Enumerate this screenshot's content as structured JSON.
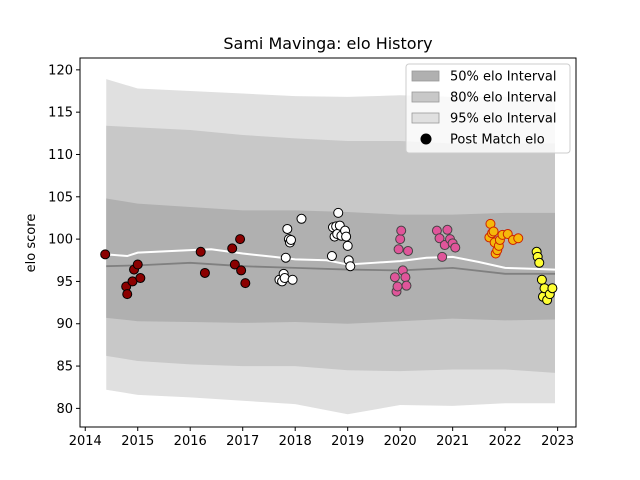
{
  "chart_data": {
    "type": "scatter",
    "title": "Sami Mavinga: elo History",
    "xlabel": "",
    "ylabel": "elo score",
    "xlim": [
      2013.9,
      2023.35
    ],
    "ylim": [
      77.8,
      121.4
    ],
    "x_ticks": [
      "2014",
      "2015",
      "2016",
      "2017",
      "2018",
      "2019",
      "2020",
      "2021",
      "2022",
      "2023"
    ],
    "y_ticks": [
      "80",
      "85",
      "90",
      "95",
      "100",
      "105",
      "110",
      "115",
      "120"
    ],
    "grid": false,
    "legend_position": "top-right",
    "legend": [
      {
        "label": "50% elo Interval",
        "color": "#b0b0b0"
      },
      {
        "label": "80% elo Interval",
        "color": "#c8c8c8"
      },
      {
        "label": "95% elo Interval",
        "color": "#e0e0e0"
      },
      {
        "label": "Post Match elo",
        "color": "#000000"
      }
    ],
    "bands": {
      "x": [
        2014.4,
        2015.0,
        2016.0,
        2017.0,
        2018.0,
        2019.0,
        2020.0,
        2021.0,
        2022.0,
        2022.95
      ],
      "p95_low": [
        82.2,
        81.6,
        81.3,
        80.9,
        80.5,
        79.3,
        80.4,
        80.3,
        80.6,
        80.6
      ],
      "p95_high": [
        118.9,
        117.8,
        117.5,
        117.2,
        116.9,
        116.8,
        117.0,
        116.8,
        116.8,
        116.8
      ],
      "p80_low": [
        86.2,
        85.6,
        85.2,
        85.0,
        85.0,
        84.5,
        84.4,
        84.6,
        84.6,
        84.2
      ],
      "p80_high": [
        113.4,
        113.2,
        112.9,
        112.3,
        111.9,
        111.6,
        111.6,
        111.3,
        111.3,
        111.3
      ],
      "p50_low": [
        90.7,
        90.3,
        90.2,
        90.1,
        90.2,
        90.0,
        90.3,
        90.6,
        90.4,
        90.5
      ],
      "p50_high": [
        104.8,
        104.2,
        103.8,
        103.4,
        103.4,
        103.2,
        102.9,
        102.9,
        103.1,
        103.1
      ]
    },
    "median_line": {
      "x": [
        2014.4,
        2015.0,
        2016.0,
        2017.0,
        2018.0,
        2019.0,
        2020.0,
        2021.0,
        2022.0,
        2022.95
      ],
      "y": [
        96.8,
        96.9,
        97.2,
        96.8,
        96.6,
        96.4,
        96.3,
        96.6,
        95.9,
        95.9
      ],
      "color": "#808080"
    },
    "elo_line": {
      "x": [
        2014.4,
        2014.8,
        2015.0,
        2016.0,
        2016.4,
        2017.0,
        2017.6,
        2018.0,
        2018.6,
        2019.0,
        2019.5,
        2020.0,
        2020.5,
        2021.0,
        2021.5,
        2022.0,
        2022.5,
        2022.95
      ],
      "y": [
        98.2,
        98.0,
        98.4,
        98.7,
        98.8,
        98.3,
        97.9,
        97.6,
        97.5,
        97.0,
        97.2,
        97.4,
        97.8,
        97.9,
        97.3,
        96.6,
        96.5,
        96.4
      ],
      "color": "#ffffff"
    },
    "series": [
      {
        "fill": "#8b0000",
        "edge": "#000000",
        "x": [
          2014.38,
          2014.78,
          2014.8,
          2014.9,
          2014.93,
          2015.0,
          2015.05
        ],
        "y": [
          98.2,
          94.4,
          93.5,
          95.0,
          96.4,
          97.0,
          95.4
        ]
      },
      {
        "fill": "#8b0000",
        "edge": "#000000",
        "x": [
          2016.2,
          2016.28,
          2016.8,
          2016.85,
          2016.95,
          2016.97,
          2017.05
        ],
        "y": [
          98.5,
          96.0,
          98.9,
          97.0,
          100.0,
          96.3,
          94.8
        ]
      },
      {
        "fill": "#ffffff",
        "edge": "#000000",
        "x": [
          2017.7,
          2017.75,
          2017.78,
          2017.8,
          2017.82,
          2017.85,
          2017.88,
          2017.9,
          2017.92,
          2017.95,
          2018.12,
          2018.7,
          2018.72,
          2018.75,
          2018.78,
          2018.8,
          2018.82,
          2018.85,
          2018.88,
          2018.95,
          2018.97,
          2019.0,
          2019.02,
          2019.05
        ],
        "y": [
          95.2,
          95.0,
          95.9,
          95.4,
          97.8,
          101.2,
          100.0,
          99.6,
          99.9,
          95.2,
          102.4,
          98.0,
          101.4,
          100.3,
          101.5,
          100.6,
          103.1,
          101.6,
          100.4,
          101.0,
          100.3,
          99.2,
          97.5,
          96.8
        ]
      },
      {
        "fill": "#e0559a",
        "edge": "#444444",
        "x": [
          2019.9,
          2019.93,
          2019.95,
          2019.97,
          2020.0,
          2020.02,
          2020.05,
          2020.1,
          2020.12,
          2020.15,
          2020.7,
          2020.75,
          2020.8,
          2020.85,
          2020.9,
          2020.95,
          2021.0,
          2021.05
        ],
        "y": [
          95.5,
          93.8,
          94.4,
          98.8,
          100.0,
          101.0,
          96.3,
          95.5,
          94.5,
          98.6,
          101.0,
          100.1,
          97.9,
          99.3,
          101.1,
          100.0,
          99.5,
          99.0
        ]
      },
      {
        "fill": "#f5b80b",
        "edge": "#cc2200",
        "x": [
          2021.7,
          2021.72,
          2021.75,
          2021.78,
          2021.8,
          2021.82,
          2021.85,
          2021.88,
          2021.9,
          2021.95,
          2022.05,
          2022.15,
          2022.25
        ],
        "y": [
          100.2,
          101.8,
          100.7,
          100.9,
          99.6,
          98.3,
          98.7,
          99.2,
          99.9,
          100.5,
          100.6,
          99.9,
          100.1
        ]
      },
      {
        "fill": "#ffff33",
        "edge": "#000000",
        "x": [
          2022.6,
          2022.62,
          2022.65,
          2022.7,
          2022.72,
          2022.75,
          2022.8,
          2022.85,
          2022.9
        ],
        "y": [
          98.5,
          97.9,
          97.2,
          95.2,
          93.2,
          94.2,
          92.8,
          93.5,
          94.2
        ]
      }
    ]
  }
}
